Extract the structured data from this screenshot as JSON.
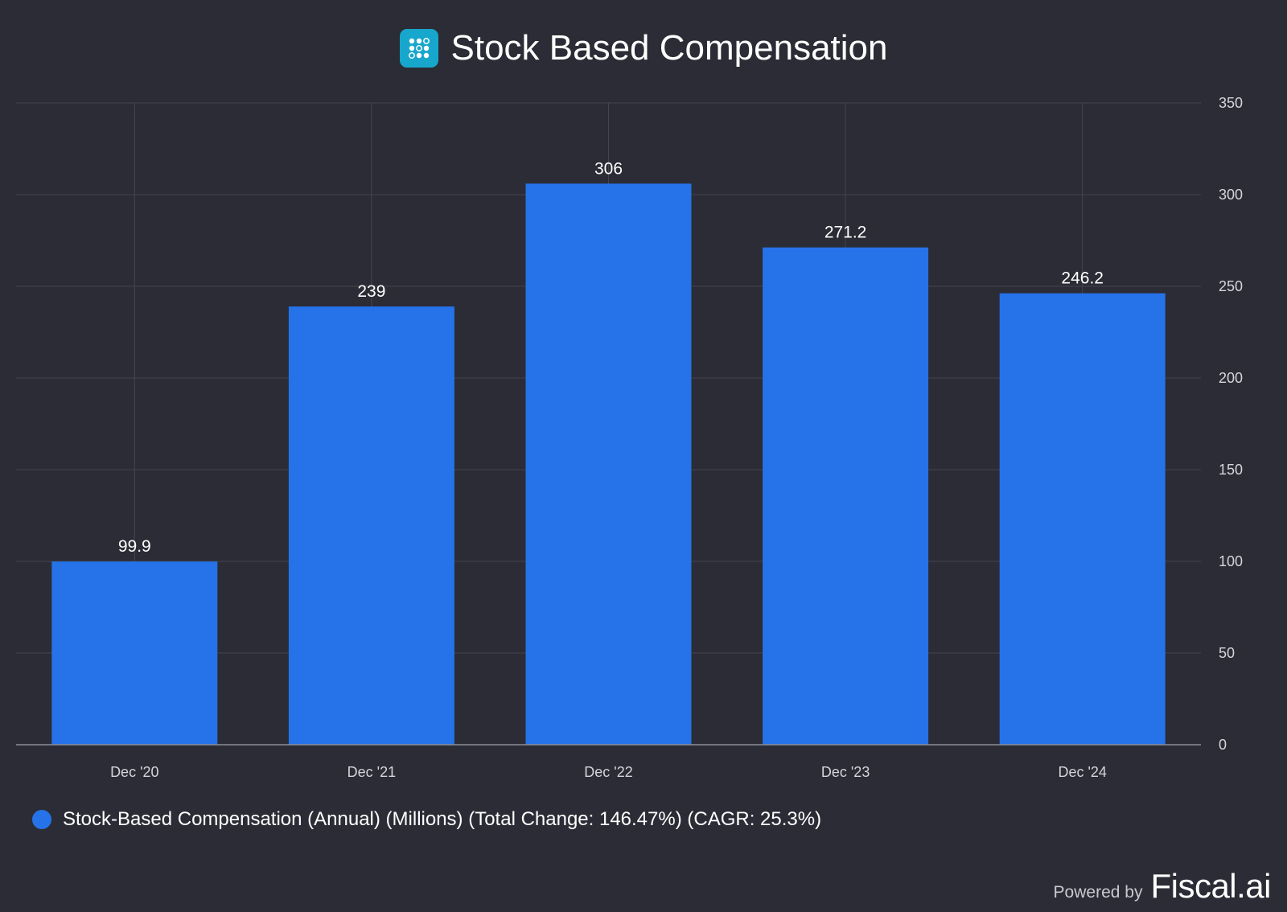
{
  "header": {
    "logo_icon": "dot-grid-logo-icon",
    "title": "Stock Based Compensation"
  },
  "colors": {
    "background": "#2b2c35",
    "bar": "#2672e9",
    "grid": "#44454f",
    "axis": "#8c8d96",
    "tick_label": "#d4d5da",
    "logo": "#17a6cc"
  },
  "chart_data": {
    "type": "bar",
    "title": "Stock Based Compensation",
    "categories": [
      "Dec '20",
      "Dec '21",
      "Dec '22",
      "Dec '23",
      "Dec '24"
    ],
    "series": [
      {
        "name": "Stock-Based Compensation (Annual) (Millions) (Total Change: 146.47%) (CAGR: 25.3%)",
        "values": [
          99.9,
          239,
          306,
          271.2,
          246.2
        ],
        "labels": [
          "99.9",
          "239",
          "306",
          "271.2",
          "246.2"
        ]
      }
    ],
    "y_ticks": [
      "0",
      "50",
      "100",
      "150",
      "200",
      "250",
      "300",
      "350"
    ],
    "ylim": [
      0,
      350
    ],
    "y_axis_side": "right",
    "grid": true,
    "legend_position": "bottom-left"
  },
  "legend": {
    "label": "Stock-Based Compensation (Annual) (Millions) (Total Change: 146.47%) (CAGR: 25.3%)"
  },
  "footer": {
    "powered_by": "Powered by",
    "brand": "Fiscal.ai"
  }
}
